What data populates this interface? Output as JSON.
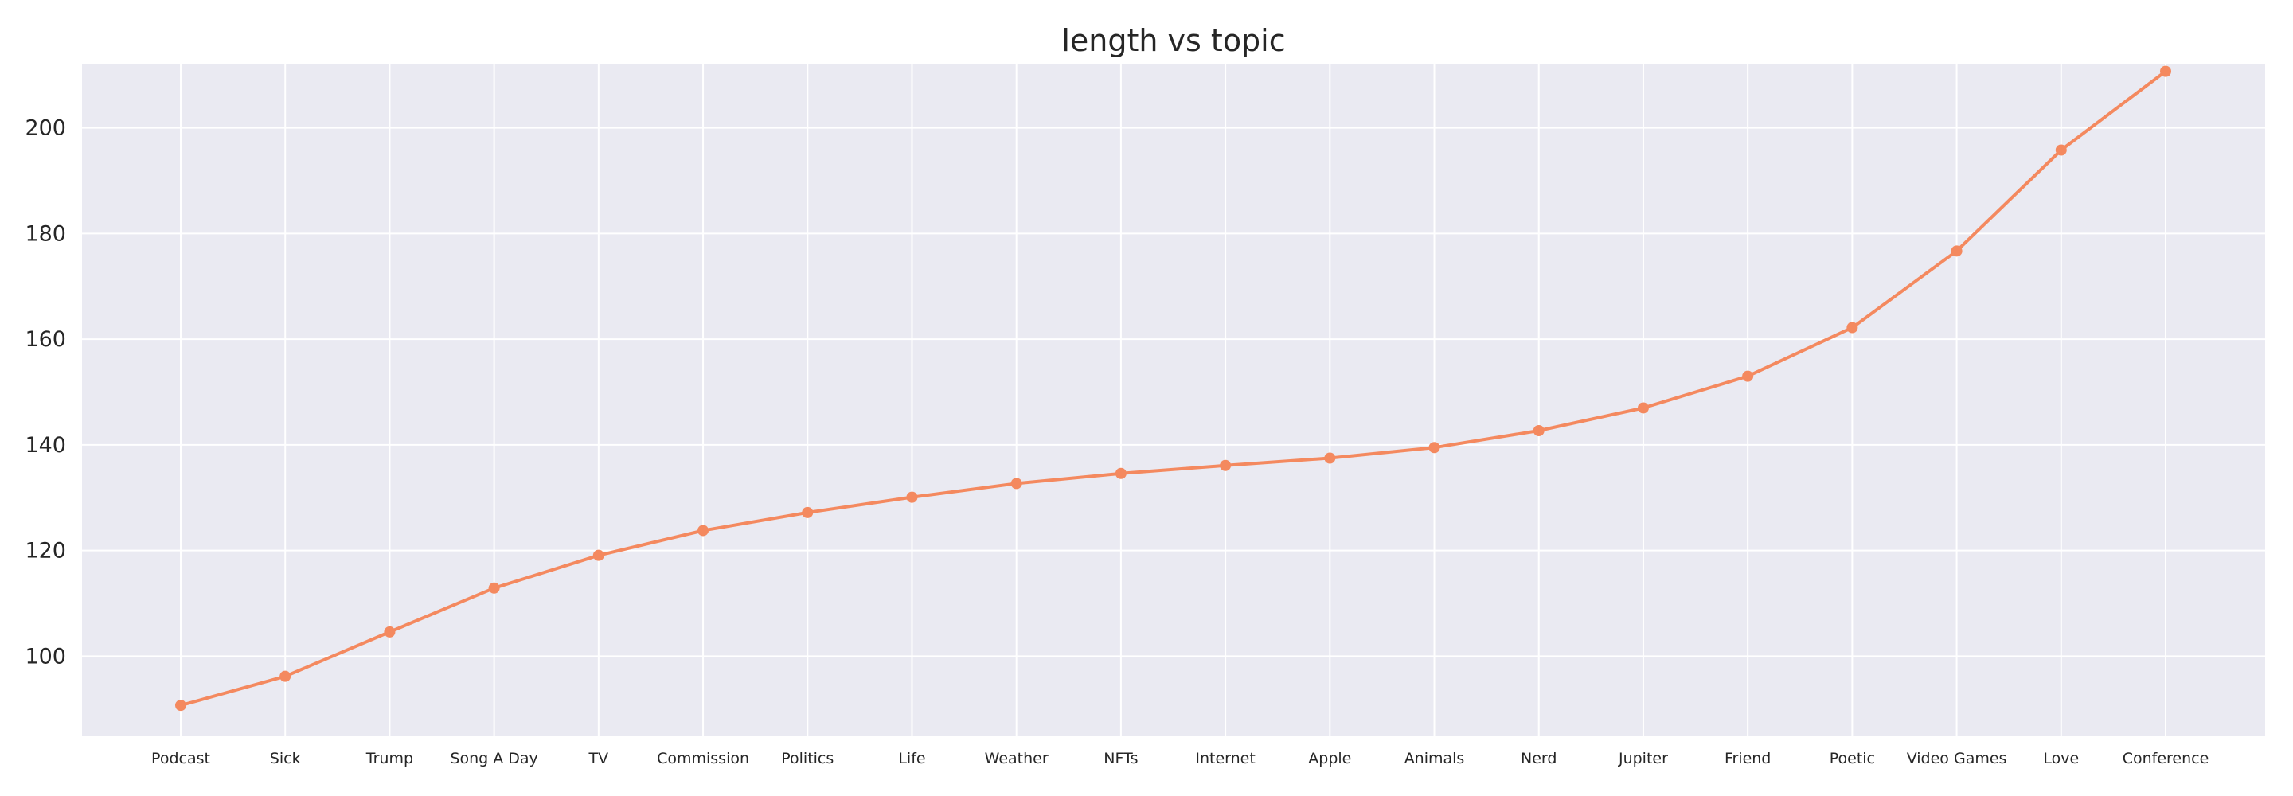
{
  "chart_data": {
    "type": "line",
    "title": "length vs topic",
    "xlabel": "",
    "ylabel": "",
    "categories": [
      "Podcast",
      "Sick",
      "Trump",
      "Song A Day",
      "TV",
      "Commission",
      "Politics",
      "Life",
      "Weather",
      "NFTs",
      "Internet",
      "Apple",
      "Animals",
      "Nerd",
      "Jupiter",
      "Friend",
      "Poetic",
      "Video Games",
      "Love",
      "Conference"
    ],
    "values": [
      90.7,
      96.2,
      104.6,
      112.9,
      119.1,
      123.8,
      127.2,
      130.1,
      132.7,
      134.6,
      136.1,
      137.5,
      139.5,
      142.7,
      147.0,
      153.0,
      162.2,
      176.7,
      195.8,
      210.7
    ],
    "ylim": [
      85,
      212
    ],
    "yticks": [
      100,
      120,
      140,
      160,
      180,
      200
    ],
    "grid": true,
    "legend": "none",
    "colors": {
      "line": "#f4895f",
      "plot_bg": "#eaeaf2",
      "grid": "#ffffff",
      "text": "#262626"
    }
  }
}
